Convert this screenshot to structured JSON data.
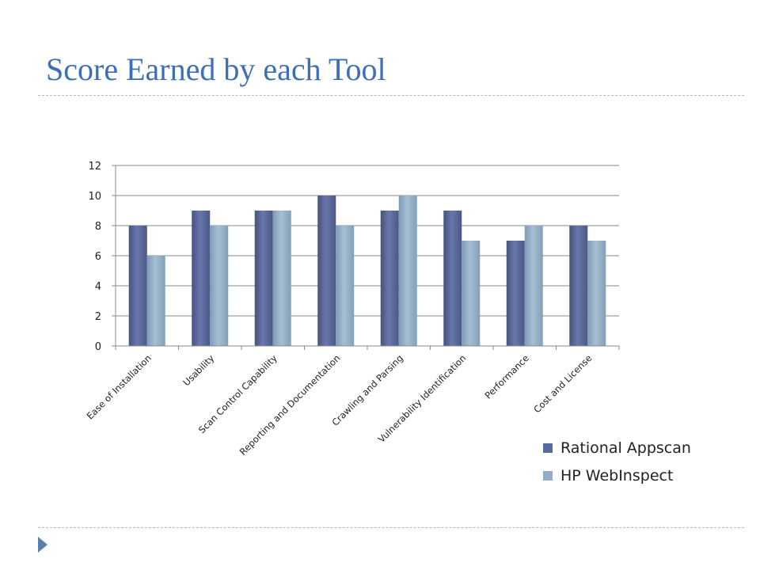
{
  "slide": {
    "title": "Score Earned by each Tool"
  },
  "chart_data": {
    "type": "bar",
    "title": "",
    "xlabel": "",
    "ylabel": "",
    "categories": [
      "Ease of Installation",
      "Usability",
      "Scan Control Capability",
      "Reporting and Documentation",
      "Crawling and Parsing",
      "Vulnerability Identification",
      "Performance",
      "Cost and License"
    ],
    "series": [
      {
        "name": "Rational Appscan",
        "color": "#5b6a9c",
        "values": [
          8,
          9,
          9,
          10,
          9,
          9,
          7,
          8
        ]
      },
      {
        "name": "HP WebInspect",
        "color": "#93aec6",
        "values": [
          6,
          8,
          9,
          8,
          10,
          7,
          8,
          7
        ]
      }
    ],
    "ylim": [
      0,
      12
    ],
    "yticks": [
      "0",
      "2",
      "4",
      "6",
      "8",
      "10",
      "12"
    ],
    "grid": true,
    "legend_position": "bottom-right"
  }
}
